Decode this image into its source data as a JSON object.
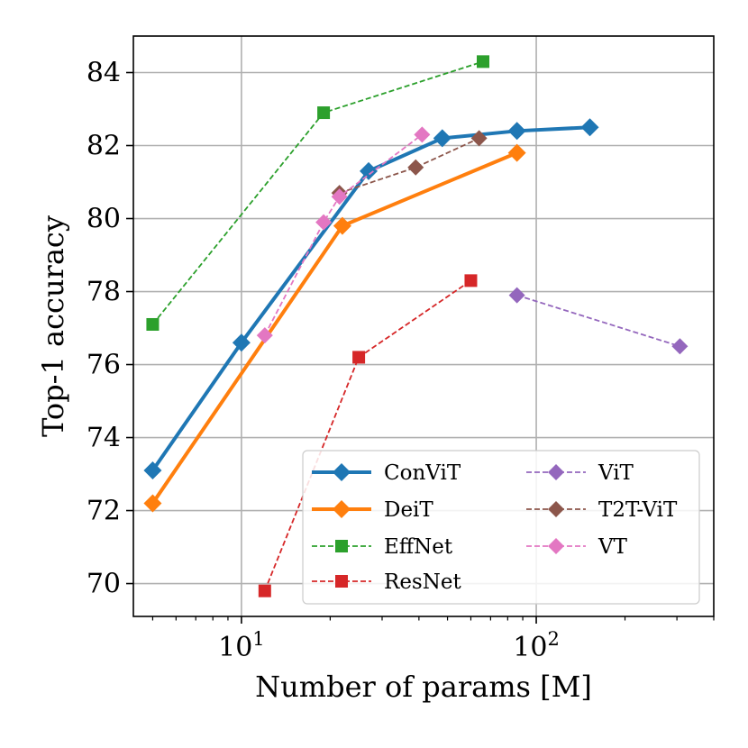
{
  "chart_data": {
    "type": "line",
    "xscale": "log",
    "xlabel": "Number of params [M]",
    "ylabel": "Top-1 accuracy",
    "xlim": [
      4.3,
      400
    ],
    "ylim": [
      69.1,
      85.0
    ],
    "yticks": [
      70,
      72,
      74,
      76,
      78,
      80,
      82,
      84
    ],
    "xticks": [
      10,
      100
    ],
    "xtick_labels": [
      {
        "base": "10",
        "exp": "1"
      },
      {
        "base": "10",
        "exp": "2"
      }
    ],
    "grid": true,
    "legend_position": "lower-right",
    "series": [
      {
        "name": "ConViT",
        "color": "#1f77b4",
        "style": "solid",
        "marker": "diamond",
        "x": [
          5,
          10,
          27,
          48,
          86,
          152
        ],
        "y": [
          73.1,
          76.6,
          81.3,
          82.2,
          82.4,
          82.5
        ]
      },
      {
        "name": "DeiT",
        "color": "#ff7f0e",
        "style": "solid",
        "marker": "diamond",
        "x": [
          5,
          22,
          86
        ],
        "y": [
          72.2,
          79.8,
          81.8
        ]
      },
      {
        "name": "EffNet",
        "color": "#2ca02c",
        "style": "dashed",
        "marker": "square",
        "x": [
          5,
          19,
          66
        ],
        "y": [
          77.1,
          82.9,
          84.3
        ]
      },
      {
        "name": "ResNet",
        "color": "#d62728",
        "style": "dashed",
        "marker": "square",
        "x": [
          12,
          25,
          60
        ],
        "y": [
          69.8,
          76.2,
          78.3
        ]
      },
      {
        "name": "ViT",
        "color": "#9467bd",
        "style": "dashed",
        "marker": "diamond",
        "x": [
          86,
          307
        ],
        "y": [
          77.9,
          76.5
        ]
      },
      {
        "name": "T2T-ViT",
        "color": "#8c564b",
        "style": "dashed",
        "marker": "diamond",
        "x": [
          21.5,
          39,
          64
        ],
        "y": [
          80.7,
          81.4,
          82.2
        ]
      },
      {
        "name": "VT",
        "color": "#e377c2",
        "style": "dashed",
        "marker": "diamond",
        "x": [
          12,
          19,
          21.5,
          41
        ],
        "y": [
          76.8,
          79.9,
          80.6,
          82.3
        ]
      }
    ]
  }
}
